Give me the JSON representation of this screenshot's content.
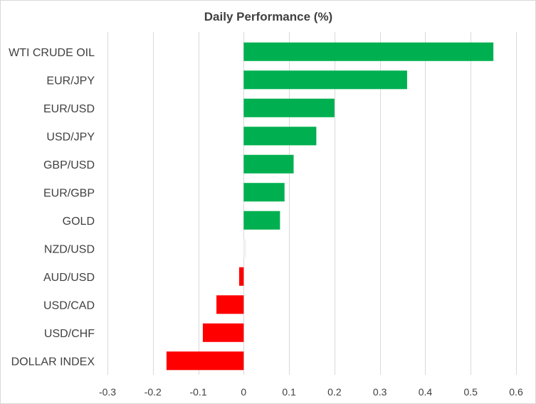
{
  "chart_data": {
    "type": "bar",
    "orientation": "horizontal",
    "title": "Daily Performance (%)",
    "xlabel": "",
    "ylabel": "",
    "categories": [
      "WTI CRUDE OIL",
      "EUR/JPY",
      "EUR/USD",
      "USD/JPY",
      "GBP/USD",
      "EUR/GBP",
      "GOLD",
      "NZD/USD",
      "AUD/USD",
      "USD/CAD",
      "USD/CHF",
      "DOLLAR INDEX"
    ],
    "values": [
      0.55,
      0.36,
      0.2,
      0.16,
      0.11,
      0.09,
      0.08,
      0.005,
      -0.01,
      -0.06,
      -0.09,
      -0.17
    ],
    "xlim": [
      -0.3,
      0.6
    ],
    "xticks": [
      -0.3,
      -0.2,
      -0.1,
      0,
      0.1,
      0.2,
      0.3,
      0.4,
      0.5,
      0.6
    ],
    "xtick_labels": [
      "-0.3",
      "-0.2",
      "-0.1",
      "0",
      "0.1",
      "0.2",
      "0.3",
      "0.4",
      "0.5",
      "0.6"
    ],
    "grid": true,
    "legend": "none",
    "colors": {
      "positive": "#00b050",
      "negative": "#ff0000",
      "grid": "#d9d9d9",
      "text": "#404040"
    }
  }
}
